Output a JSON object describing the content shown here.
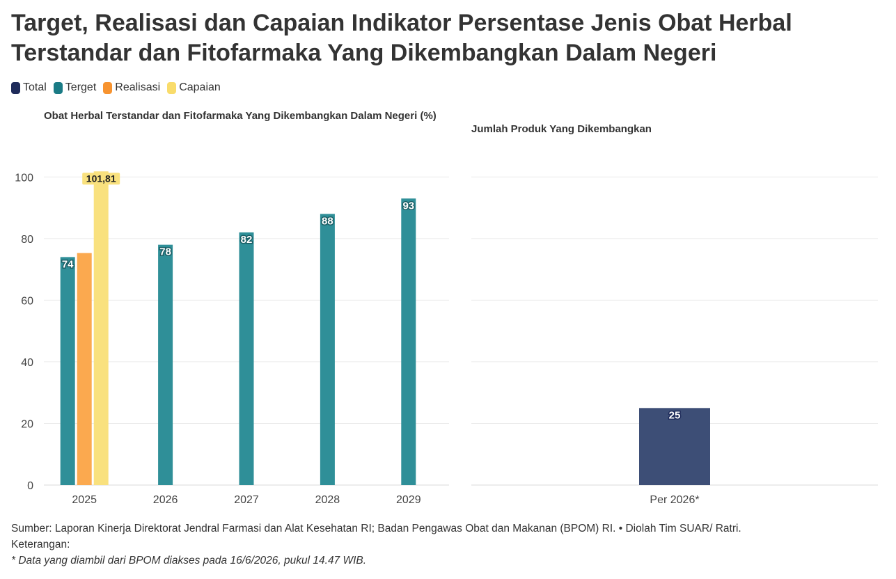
{
  "title": "Target, Realisasi dan Capaian Indikator Persentase Jenis Obat Herbal Terstandar dan Fitofarmaka Yang Dikembangkan Dalam Negeri",
  "legend": [
    {
      "label": "Total",
      "color": "#1e2b5a"
    },
    {
      "label": "Terget",
      "color": "#1a7b85"
    },
    {
      "label": "Realisasi",
      "color": "#f7932f"
    },
    {
      "label": "Capaian",
      "color": "#f9dc6b"
    }
  ],
  "chart_data": [
    {
      "type": "bar",
      "title": "Obat Herbal Terstandar dan Fitofarmaka Yang Dikembangkan Dalam Negeri (%)",
      "categories": [
        "2025",
        "2026",
        "2027",
        "2028",
        "2029"
      ],
      "series": [
        {
          "name": "Terget",
          "color": "#2f8f98",
          "values": [
            74,
            78,
            82,
            88,
            93
          ],
          "labels": [
            "74",
            "78",
            "82",
            "88",
            "93"
          ]
        },
        {
          "name": "Realisasi",
          "color": "#fba94f",
          "values": [
            75.3,
            null,
            null,
            null,
            null
          ],
          "labels": [
            null,
            null,
            null,
            null,
            null
          ]
        },
        {
          "name": "Capaian",
          "color": "#f9e17e",
          "values": [
            101.81,
            null,
            null,
            null,
            null
          ],
          "labels": [
            "101,81",
            null,
            null,
            null,
            null
          ]
        }
      ],
      "ylim": [
        0,
        110
      ],
      "yticks": [
        0,
        20,
        40,
        60,
        80,
        100
      ],
      "grid": true
    },
    {
      "type": "bar",
      "title": "Jumlah Produk Yang Dikembangkan",
      "categories": [
        "Per 2026*"
      ],
      "series": [
        {
          "name": "Total",
          "color": "#3d4e76",
          "values": [
            25
          ],
          "labels": [
            "25"
          ]
        }
      ],
      "ylim": [
        0,
        110
      ],
      "yticks": [
        0,
        20,
        40,
        60,
        80,
        100
      ],
      "grid": true
    }
  ],
  "footer": {
    "source": "Sumber: Laporan Kinerja Direktorat Jendral Farmasi dan Alat Kesehatan RI; Badan Pengawas Obat dan Makanan (BPOM) RI. • Diolah Tim SUAR/ Ratri.",
    "keterangan": "Keterangan:",
    "note": "* Data yang diambil dari BPOM diakses pada 16/6/2026, pukul 14.47 WIB."
  }
}
